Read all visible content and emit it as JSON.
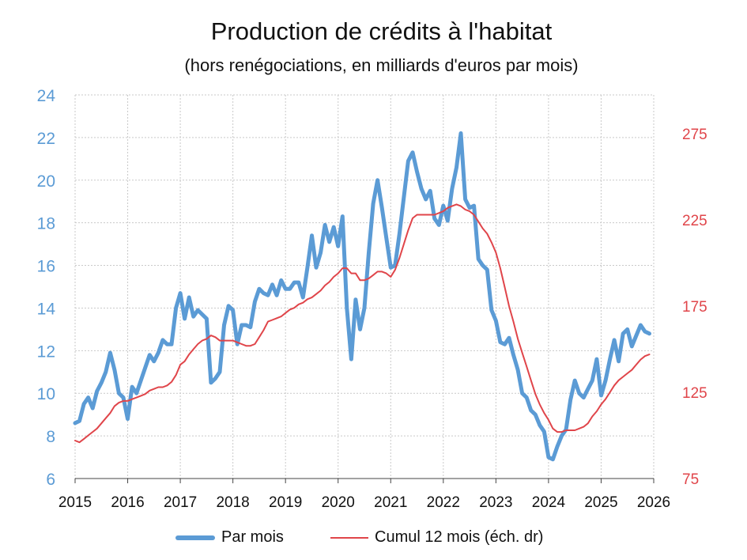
{
  "chart_data": {
    "type": "line",
    "title": "Production de crédits à l'habitat",
    "subtitle": "(hors renégociations, en milliards d'euros par mois)",
    "x_tick_labels": [
      "2015",
      "2016",
      "2017",
      "2018",
      "2019",
      "2020",
      "2021",
      "2022",
      "2023",
      "2024",
      "2025",
      "2026"
    ],
    "x_range": [
      2015,
      2026
    ],
    "y_left": {
      "range": [
        6,
        24
      ],
      "ticks": [
        6,
        8,
        10,
        12,
        14,
        16,
        18,
        20,
        22,
        24
      ],
      "color": "#5b9bd5"
    },
    "y_right": {
      "range": [
        75,
        297.5
      ],
      "ticks": [
        75,
        125,
        175,
        225,
        275
      ],
      "color": "#e0454a"
    },
    "series": [
      {
        "name": "Par mois",
        "axis": "left",
        "color": "#5b9bd5",
        "x": [
          2015.0,
          2015.083,
          2015.167,
          2015.25,
          2015.333,
          2015.417,
          2015.5,
          2015.583,
          2015.667,
          2015.75,
          2015.833,
          2015.917,
          2016.0,
          2016.083,
          2016.167,
          2016.25,
          2016.333,
          2016.417,
          2016.5,
          2016.583,
          2016.667,
          2016.75,
          2016.833,
          2016.917,
          2017.0,
          2017.083,
          2017.167,
          2017.25,
          2017.333,
          2017.417,
          2017.5,
          2017.583,
          2017.667,
          2017.75,
          2017.833,
          2017.917,
          2018.0,
          2018.083,
          2018.167,
          2018.25,
          2018.333,
          2018.417,
          2018.5,
          2018.583,
          2018.667,
          2018.75,
          2018.833,
          2018.917,
          2019.0,
          2019.083,
          2019.167,
          2019.25,
          2019.333,
          2019.417,
          2019.5,
          2019.583,
          2019.667,
          2019.75,
          2019.833,
          2019.917,
          2020.0,
          2020.083,
          2020.167,
          2020.25,
          2020.333,
          2020.417,
          2020.5,
          2020.583,
          2020.667,
          2020.75,
          2020.833,
          2020.917,
          2021.0,
          2021.083,
          2021.167,
          2021.25,
          2021.333,
          2021.417,
          2021.5,
          2021.583,
          2021.667,
          2021.75,
          2021.833,
          2021.917,
          2022.0,
          2022.083,
          2022.167,
          2022.25,
          2022.333,
          2022.417,
          2022.5,
          2022.583,
          2022.667,
          2022.75,
          2022.833,
          2022.917,
          2023.0,
          2023.083,
          2023.167,
          2023.25,
          2023.333,
          2023.417,
          2023.5,
          2023.583,
          2023.667,
          2023.75,
          2023.833,
          2023.917,
          2024.0,
          2024.083,
          2024.167,
          2024.25,
          2024.333,
          2024.417,
          2024.5,
          2024.583,
          2024.667,
          2024.75,
          2024.833,
          2024.917,
          2025.0,
          2025.083,
          2025.167,
          2025.25,
          2025.333,
          2025.417,
          2025.5,
          2025.583,
          2025.667,
          2025.75,
          2025.833,
          2025.917
        ],
        "values": [
          8.6,
          8.7,
          9.5,
          9.8,
          9.3,
          10.1,
          10.5,
          11.0,
          11.9,
          11.1,
          10.0,
          9.8,
          8.8,
          10.3,
          10.0,
          10.6,
          11.2,
          11.8,
          11.5,
          11.9,
          12.5,
          12.3,
          12.3,
          14.0,
          14.7,
          13.5,
          14.5,
          13.6,
          13.9,
          13.7,
          13.5,
          10.5,
          10.7,
          11.0,
          13.2,
          14.1,
          13.9,
          12.3,
          13.2,
          13.2,
          13.1,
          14.3,
          14.9,
          14.7,
          14.6,
          15.1,
          14.6,
          15.3,
          14.9,
          14.9,
          15.2,
          15.2,
          14.5,
          15.9,
          17.4,
          15.9,
          16.6,
          17.9,
          17.1,
          17.8,
          16.9,
          18.3,
          14.0,
          11.6,
          14.4,
          13.0,
          14.0,
          16.6,
          18.9,
          20.0,
          18.7,
          17.3,
          15.9,
          16.0,
          17.5,
          19.2,
          20.9,
          21.3,
          20.4,
          19.6,
          19.1,
          19.5,
          18.2,
          17.9,
          18.8,
          18.1,
          19.6,
          20.6,
          22.2,
          19.1,
          18.7,
          18.8,
          16.3,
          16.0,
          15.8,
          13.9,
          13.4,
          12.4,
          12.3,
          12.6,
          11.8,
          11.1,
          10.0,
          9.8,
          9.2,
          9.0,
          8.5,
          8.2,
          7.0,
          6.9,
          7.5,
          8.0,
          8.3,
          9.7,
          10.6,
          10.0,
          9.8,
          10.2,
          10.6,
          11.6,
          9.9,
          10.6,
          11.6,
          12.5,
          11.5,
          12.8,
          13.0,
          12.2,
          12.7,
          13.2,
          12.9,
          12.8
        ]
      },
      {
        "name": "Cumul 12 mois (éch. dr)",
        "axis": "right",
        "color": "#e0454a",
        "x": [
          2015.0,
          2015.083,
          2015.167,
          2015.25,
          2015.333,
          2015.417,
          2015.5,
          2015.583,
          2015.667,
          2015.75,
          2015.833,
          2015.917,
          2016.0,
          2016.083,
          2016.167,
          2016.25,
          2016.333,
          2016.417,
          2016.5,
          2016.583,
          2016.667,
          2016.75,
          2016.833,
          2016.917,
          2017.0,
          2017.083,
          2017.167,
          2017.25,
          2017.333,
          2017.417,
          2017.5,
          2017.583,
          2017.667,
          2017.75,
          2017.833,
          2017.917,
          2018.0,
          2018.083,
          2018.167,
          2018.25,
          2018.333,
          2018.417,
          2018.5,
          2018.583,
          2018.667,
          2018.75,
          2018.833,
          2018.917,
          2019.0,
          2019.083,
          2019.167,
          2019.25,
          2019.333,
          2019.417,
          2019.5,
          2019.583,
          2019.667,
          2019.75,
          2019.833,
          2019.917,
          2020.0,
          2020.083,
          2020.167,
          2020.25,
          2020.333,
          2020.417,
          2020.5,
          2020.583,
          2020.667,
          2020.75,
          2020.833,
          2020.917,
          2021.0,
          2021.083,
          2021.167,
          2021.25,
          2021.333,
          2021.417,
          2021.5,
          2021.583,
          2021.667,
          2021.75,
          2021.833,
          2021.917,
          2022.0,
          2022.083,
          2022.167,
          2022.25,
          2022.333,
          2022.417,
          2022.5,
          2022.583,
          2022.667,
          2022.75,
          2022.833,
          2022.917,
          2023.0,
          2023.083,
          2023.167,
          2023.25,
          2023.333,
          2023.417,
          2023.5,
          2023.583,
          2023.667,
          2023.75,
          2023.833,
          2023.917,
          2024.0,
          2024.083,
          2024.167,
          2024.25,
          2024.333,
          2024.417,
          2024.5,
          2024.583,
          2024.667,
          2024.75,
          2024.833,
          2024.917,
          2025.0,
          2025.083,
          2025.167,
          2025.25,
          2025.333,
          2025.417,
          2025.5,
          2025.583,
          2025.667,
          2025.75,
          2025.833,
          2025.917
        ],
        "values": [
          97,
          96,
          98,
          100,
          102,
          104,
          107,
          110,
          113,
          117,
          119,
          120,
          120,
          121,
          122,
          123,
          124,
          126,
          127,
          128,
          128,
          129,
          131,
          135,
          141,
          143,
          147,
          150,
          153,
          155,
          156,
          158,
          157,
          155,
          155,
          155,
          155,
          154,
          153,
          152,
          152,
          153,
          157,
          161,
          166,
          167,
          168,
          169,
          171,
          173,
          174,
          176,
          177,
          179,
          180,
          182,
          184,
          187,
          189,
          192,
          194,
          197,
          197,
          194,
          194,
          190,
          190,
          191,
          193,
          195,
          195,
          194,
          192,
          196,
          203,
          211,
          219,
          226,
          228,
          228,
          228,
          228,
          228,
          229,
          230,
          232,
          233,
          234,
          233,
          231,
          230,
          228,
          224,
          220,
          217,
          212,
          206,
          197,
          186,
          175,
          166,
          156,
          148,
          140,
          132,
          124,
          118,
          113,
          109,
          104,
          102,
          102,
          103,
          103,
          103,
          104,
          105,
          107,
          111,
          114,
          118,
          121,
          125,
          129,
          132,
          134,
          136,
          138,
          141,
          144,
          146,
          147
        ]
      }
    ]
  },
  "legend": {
    "series1_label": "Par mois",
    "series2_label": "Cumul 12 mois (éch. dr)"
  }
}
